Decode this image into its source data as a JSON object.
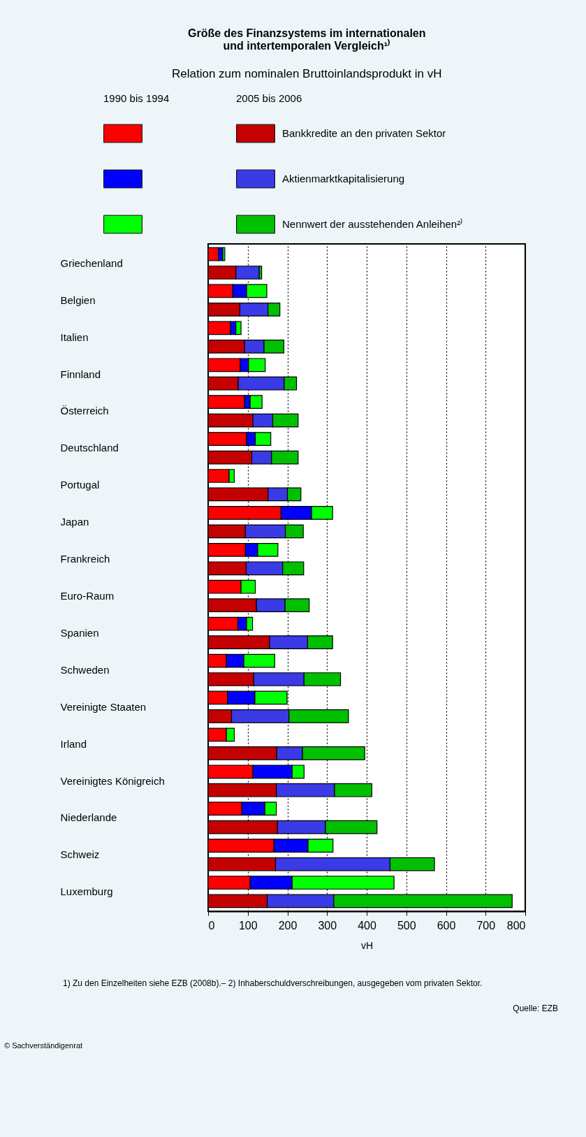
{
  "chart_data": {
    "type": "bar",
    "orientation": "horizontal",
    "stacked": true,
    "title": "Größe des Finanzsystems im internationalen und intertemporalen Vergleich¹⁾",
    "subtitle": "Relation zum nominalen Bruttoinlandsprodukt in vH",
    "xlabel": "vH",
    "categories": [
      "Griechenland",
      null,
      "Belgien",
      null,
      "Italien",
      null,
      "Finnland",
      null,
      "Österreich",
      null,
      "Deutschland",
      null,
      "Portugal",
      null,
      "Japan",
      null,
      "Frankreich",
      null,
      "Euro-Raum",
      null,
      "Spanien",
      null,
      "Schweden",
      null,
      "Vereinigte Staaten",
      null,
      "Irland",
      null,
      "Vereinigtes Königreich",
      null,
      "Niederlande",
      null,
      "Schweiz",
      null,
      "Luxemburg",
      null
    ],
    "series": [
      {
        "color": "#ff0000",
        "values": [
          26,
          null,
          62,
          null,
          56,
          null,
          81,
          null,
          92,
          null,
          97,
          null,
          53,
          null,
          184,
          null,
          94,
          null,
          83,
          null,
          75,
          null,
          46,
          null,
          49,
          null,
          46,
          null,
          113,
          null,
          85,
          null,
          166,
          null,
          106,
          null
        ]
      },
      {
        "color": "#0000ff",
        "values": [
          11,
          null,
          35,
          null,
          14,
          null,
          21,
          null,
          14,
          null,
          22,
          null,
          null,
          null,
          77,
          null,
          31,
          null,
          null,
          null,
          22,
          null,
          44,
          null,
          69,
          null,
          null,
          null,
          99,
          null,
          58,
          null,
          86,
          null,
          106,
          null
        ]
      },
      {
        "color": "#00ff00",
        "values": [
          5,
          null,
          51,
          null,
          13,
          null,
          42,
          null,
          30,
          null,
          39,
          null,
          13,
          null,
          53,
          null,
          51,
          null,
          36,
          null,
          15,
          null,
          78,
          null,
          81,
          null,
          20,
          null,
          30,
          null,
          29,
          null,
          63,
          null,
          257,
          null
        ]
      },
      {
        "name": "Bankkredite an den privaten Sektor",
        "color": "#c40000",
        "values": [
          null,
          70,
          null,
          80,
          null,
          92,
          null,
          76,
          null,
          113,
          null,
          110,
          null,
          151,
          null,
          94,
          null,
          96,
          null,
          122,
          null,
          155,
          null,
          115,
          null,
          59,
          null,
          173,
          null,
          172,
          null,
          175,
          null,
          170,
          null,
          149
        ]
      },
      {
        "name": "Aktienmarktkapitalisierung",
        "color": "#3a3ae6",
        "values": [
          null,
          59,
          null,
          71,
          null,
          49,
          null,
          116,
          null,
          50,
          null,
          50,
          null,
          49,
          null,
          101,
          null,
          92,
          null,
          72,
          null,
          96,
          null,
          127,
          null,
          145,
          null,
          65,
          null,
          147,
          null,
          121,
          null,
          289,
          null,
          168
        ]
      },
      {
        "name": "Nennwert der ausstehenden Anleihen²⁾",
        "color": "#00c000",
        "values": [
          null,
          6,
          null,
          30,
          null,
          50,
          null,
          31,
          null,
          64,
          null,
          67,
          null,
          34,
          null,
          45,
          null,
          53,
          null,
          61,
          null,
          63,
          null,
          92,
          null,
          150,
          null,
          157,
          null,
          94,
          null,
          130,
          null,
          112,
          null,
          450
        ]
      }
    ],
    "xlim": [
      0,
      800
    ],
    "xticks": [
      0,
      100,
      200,
      300,
      400,
      500,
      600,
      700,
      800
    ],
    "grid": "x",
    "legend": "top",
    "annotations": [
      "1990 bis 1994",
      "2005 bis 2006",
      "1) Zu den Einzelheiten siehe EZB (2008b).– 2) Inhaberschuldverschreibungen, ausgegeben vom privaten Sektor.",
      "Quelle: EZB",
      "© Sachverständigenrat"
    ]
  }
}
